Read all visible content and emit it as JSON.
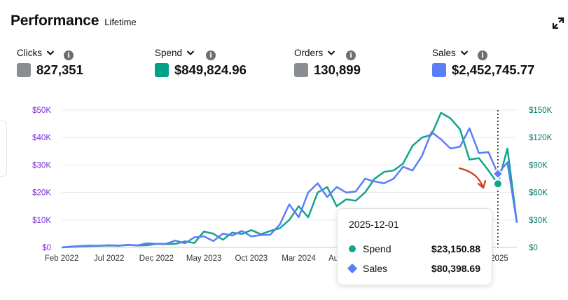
{
  "header": {
    "title": "Performance",
    "subtitle": "Lifetime",
    "expand_icon": "expand-arrows-icon"
  },
  "metrics": [
    {
      "label": "Clicks",
      "value": "827,351",
      "color": "#8a8d91"
    },
    {
      "label": "Spend",
      "value": "$849,824.96",
      "color": "#00a08a"
    },
    {
      "label": "Orders",
      "value": "130,899",
      "color": "#8a8d91"
    },
    {
      "label": "Sales",
      "value": "$2,452,745.77",
      "color": "#5b7df7"
    }
  ],
  "chart_data": {
    "type": "line",
    "x": [
      "2022-02",
      "2022-03",
      "2022-04",
      "2022-05",
      "2022-06",
      "2022-07",
      "2022-08",
      "2022-09",
      "2022-10",
      "2022-11",
      "2022-12",
      "2023-01",
      "2023-02",
      "2023-03",
      "2023-04",
      "2023-05",
      "2023-06",
      "2023-07",
      "2023-08",
      "2023-09",
      "2023-10",
      "2023-11",
      "2023-12",
      "2024-01",
      "2024-02",
      "2024-03",
      "2024-04",
      "2024-05",
      "2024-06",
      "2024-07",
      "2024-08",
      "2024-09",
      "2024-10",
      "2024-11",
      "2024-12",
      "2025-01",
      "2025-02",
      "2025-03",
      "2025-04",
      "2025-05",
      "2025-06",
      "2025-07",
      "2025-08",
      "2025-09",
      "2025-10",
      "2025-11",
      "2025-12",
      "2026-01",
      "2026-02"
    ],
    "x_tick_labels": [
      "Feb 2022",
      "Jul 2022",
      "Dec 2022",
      "May 2023",
      "Oct 2023",
      "Mar 2024",
      "Au",
      "2025"
    ],
    "y_left": {
      "range": [
        0,
        50000
      ],
      "ticks": [
        "$0",
        "$10K",
        "$20K",
        "$30K",
        "$40K",
        "$50K"
      ],
      "color": "#7b2fd6"
    },
    "y_right": {
      "range": [
        0,
        150000
      ],
      "ticks": [
        "$0",
        "$30K",
        "$60K",
        "$90K",
        "$120K",
        "$150K"
      ],
      "color": "#007a6a"
    },
    "series": [
      {
        "name": "Spend",
        "axis": "left",
        "color": "#10a58c",
        "values": [
          0,
          200,
          400,
          500,
          600,
          700,
          600,
          900,
          700,
          800,
          1300,
          1200,
          1300,
          2200,
          1600,
          5800,
          5000,
          2800,
          5400,
          4900,
          6300,
          4800,
          6000,
          7000,
          10000,
          15000,
          11000,
          20000,
          22000,
          15000,
          17500,
          17000,
          20000,
          25000,
          27500,
          28000,
          30500,
          37000,
          40000,
          41000,
          49000,
          47000,
          43000,
          32000,
          32500,
          28000,
          23150,
          36000,
          9000
        ]
      },
      {
        "name": "Sales",
        "axis": "right",
        "color": "#5b7df7",
        "values": [
          0,
          1000,
          1500,
          2000,
          1800,
          2500,
          2000,
          2800,
          2200,
          4500,
          3800,
          4000,
          7500,
          4500,
          11000,
          12000,
          7000,
          15000,
          13000,
          18000,
          12000,
          13500,
          14000,
          25000,
          47000,
          33000,
          60000,
          70000,
          55000,
          66000,
          60000,
          61000,
          75000,
          72000,
          70000,
          75000,
          88000,
          84000,
          100000,
          126000,
          118000,
          108000,
          110000,
          130000,
          103000,
          104000,
          80400,
          93000,
          27000
        ]
      }
    ],
    "hover": {
      "date": "2025-12-01",
      "rows": [
        {
          "name": "Spend",
          "value": "$23,150.88"
        },
        {
          "name": "Sales",
          "value": "$80,398.69"
        }
      ]
    }
  }
}
